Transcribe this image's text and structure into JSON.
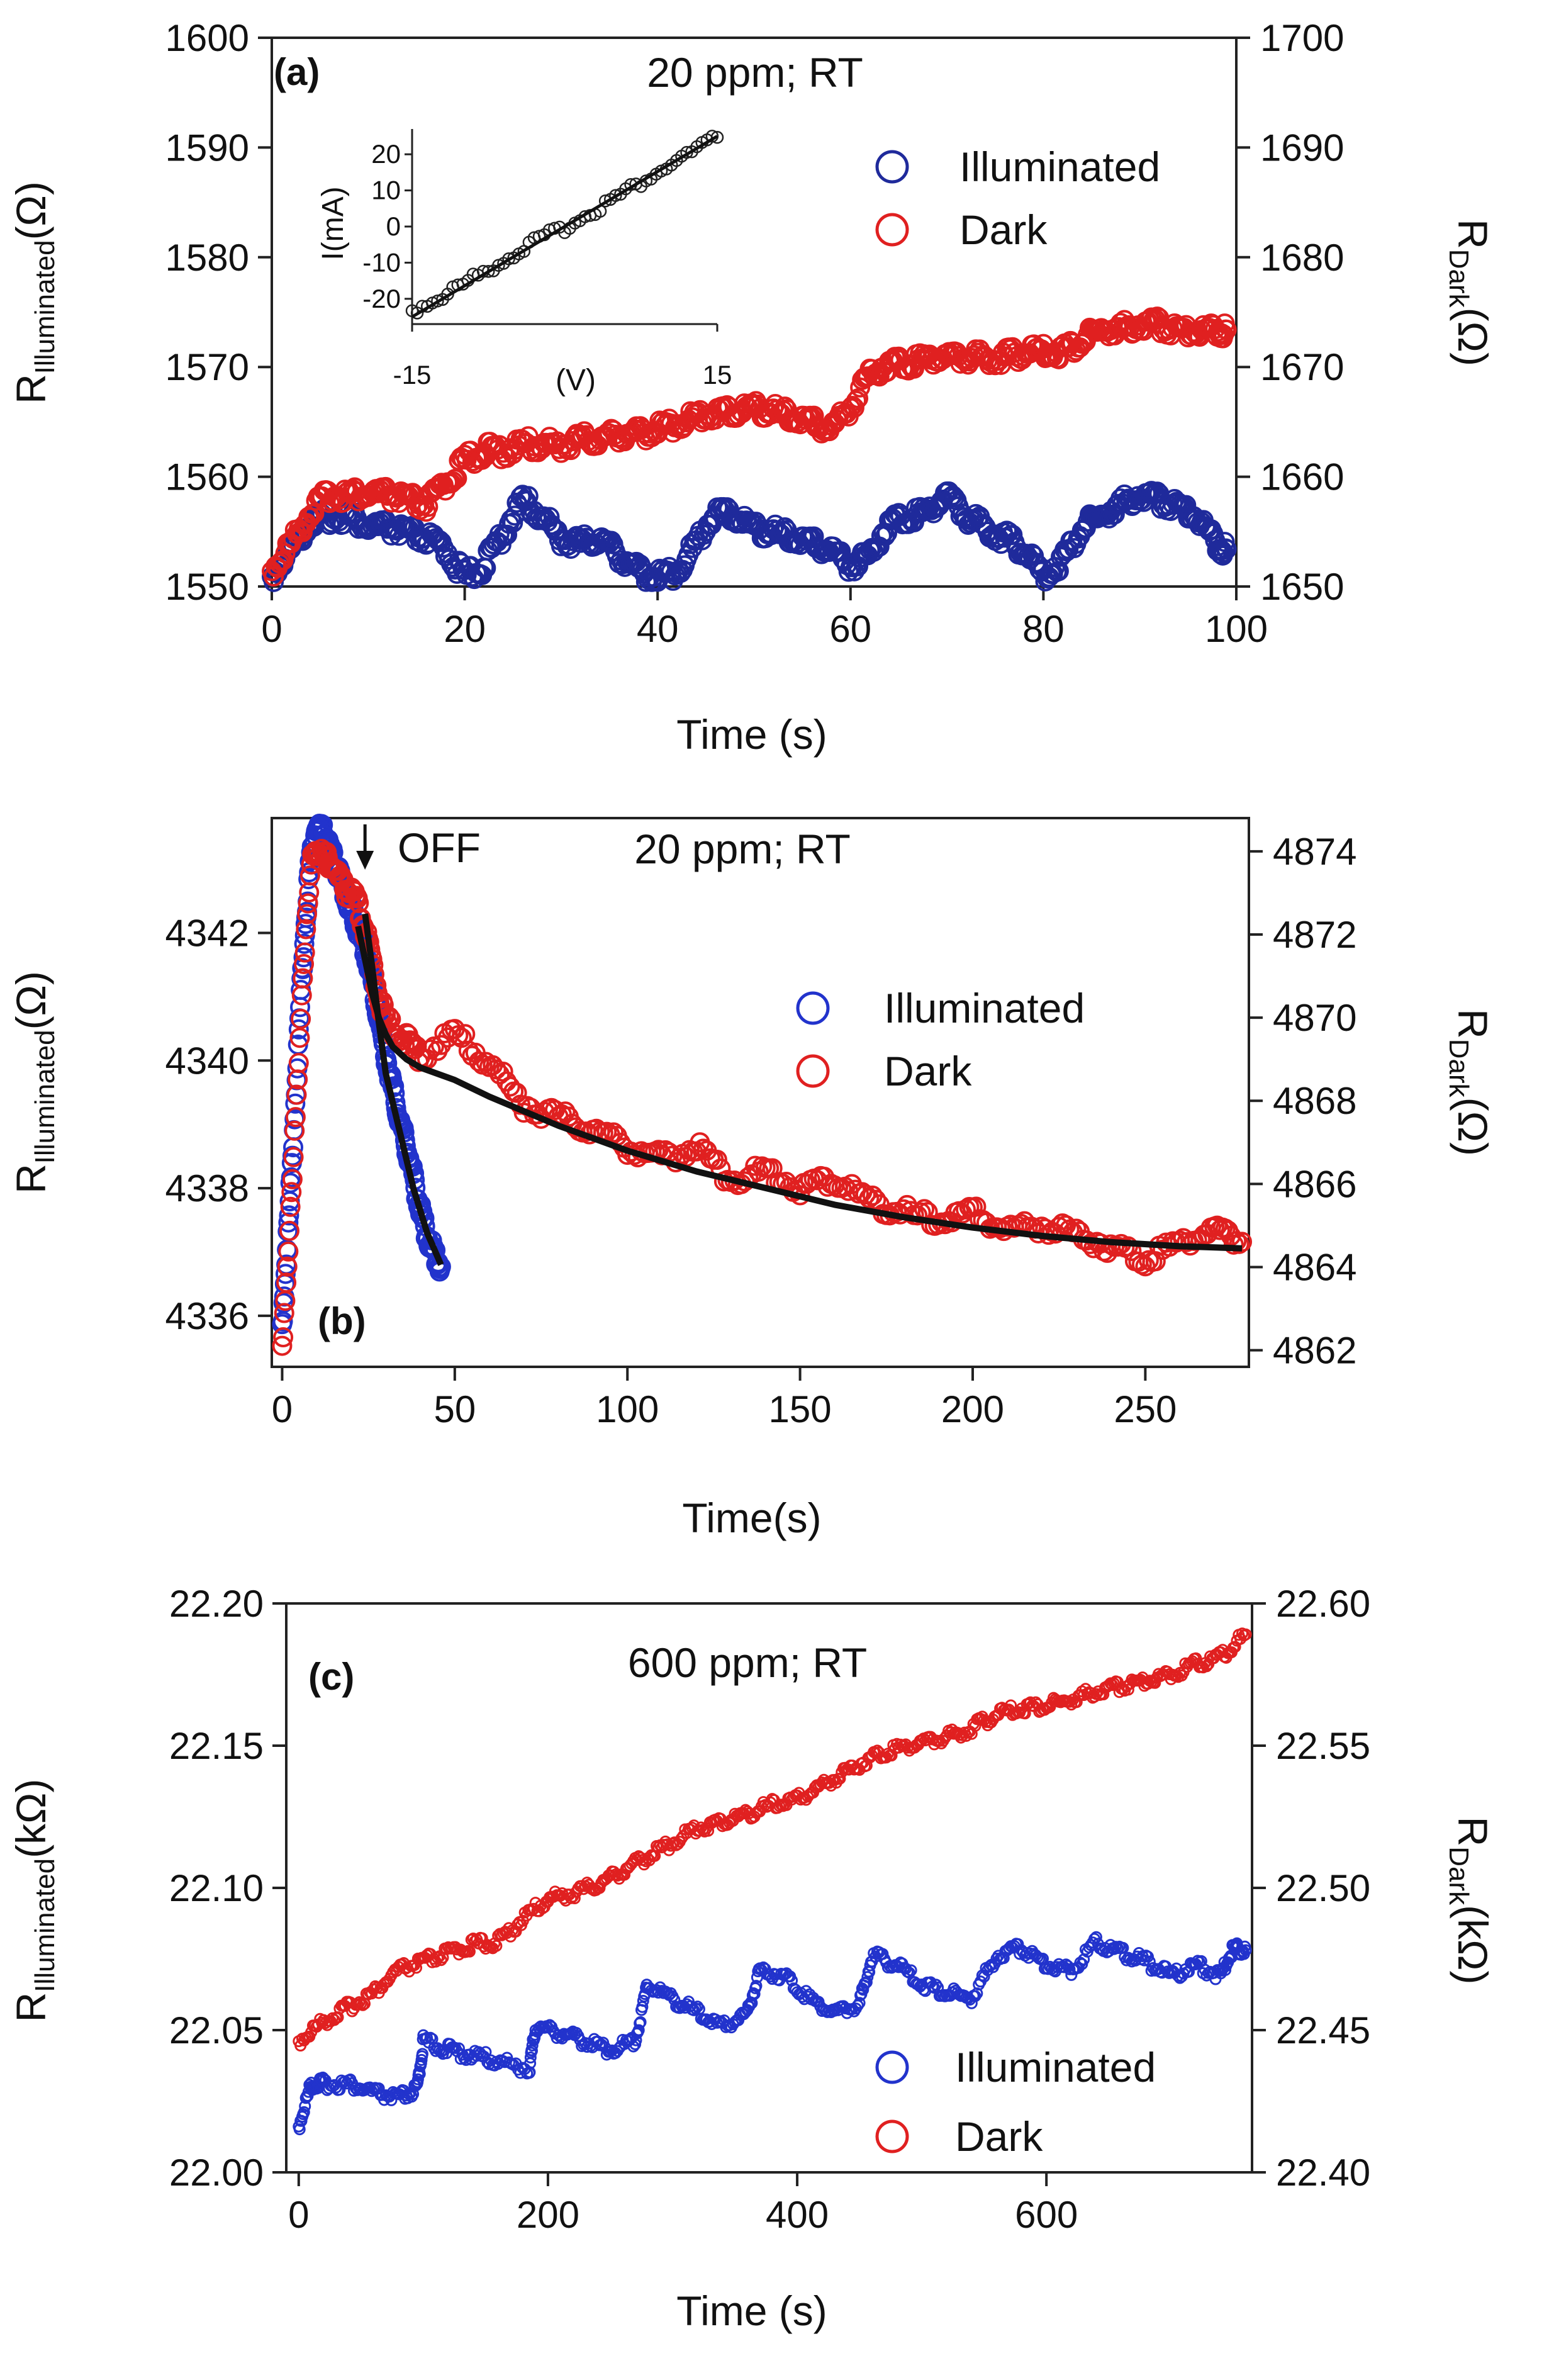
{
  "figure": {
    "description_panels": [
      "a",
      "b",
      "c"
    ]
  },
  "chart_data": [
    {
      "panel": "a",
      "type": "scatter",
      "tag": "(a)",
      "annotation": "20 ppm; RT",
      "xlabel": "Time (s)",
      "ylabel_left": {
        "base": "R",
        "sub": "Illuminated",
        "unit": "(Ω)"
      },
      "ylabel_right": {
        "base": "R",
        "sub": "Dark",
        "unit": "(Ω)"
      },
      "xlim": [
        0,
        100
      ],
      "ylim_left": [
        1550,
        1600
      ],
      "ylim_right": [
        1650,
        1700
      ],
      "xticks": [
        0,
        20,
        40,
        60,
        80,
        100
      ],
      "yticks_left": [
        1550,
        1560,
        1570,
        1580,
        1590,
        1600
      ],
      "yticks_right": [
        1650,
        1660,
        1670,
        1680,
        1690,
        1700
      ],
      "legend": [
        "Illuminated",
        "Dark"
      ],
      "series": [
        {
          "name": "Illuminated",
          "axis": "left",
          "color": "#1f2a9b",
          "x": [
            0,
            2,
            4,
            6,
            8,
            10,
            12,
            14,
            16,
            18,
            20,
            22,
            24,
            26,
            28,
            30,
            32,
            34,
            36,
            38,
            40,
            42,
            44,
            46,
            48,
            50,
            52,
            54,
            56,
            58,
            60,
            62,
            64,
            66,
            68,
            70,
            72,
            74,
            76,
            78,
            80,
            82,
            84,
            86,
            88,
            90,
            92,
            94,
            96,
            98,
            99
          ],
          "values": [
            1550.5,
            1553,
            1555.5,
            1556,
            1556,
            1555,
            1555,
            1554.5,
            1554,
            1553,
            1550.5,
            1551.5,
            1554.5,
            1557.5,
            1556,
            1554,
            1553.5,
            1554,
            1552.5,
            1551,
            1550.5,
            1551,
            1553.5,
            1556.5,
            1556,
            1555,
            1554.5,
            1554,
            1553.5,
            1553,
            1551.5,
            1552.5,
            1555.5,
            1556,
            1556.5,
            1558,
            1556,
            1555,
            1554,
            1553,
            1550.5,
            1552,
            1555,
            1556,
            1557,
            1558,
            1557.5,
            1557,
            1556,
            1553.5,
            1553
          ]
        },
        {
          "name": "Dark",
          "axis": "right",
          "color": "#e02020",
          "x": [
            0,
            2,
            4,
            6,
            8,
            10,
            12,
            14,
            16,
            18,
            20,
            22,
            24,
            26,
            28,
            30,
            32,
            34,
            36,
            38,
            40,
            42,
            44,
            46,
            48,
            50,
            52,
            54,
            56,
            58,
            60,
            62,
            64,
            66,
            68,
            70,
            72,
            74,
            76,
            78,
            80,
            82,
            84,
            86,
            88,
            90,
            92,
            94,
            96,
            98,
            99
          ],
          "values": [
            1651,
            1653.5,
            1656.5,
            1658,
            1658,
            1658,
            1658,
            1657.5,
            1657,
            1659,
            1661,
            1662,
            1662,
            1662.5,
            1662.5,
            1662.5,
            1663,
            1663,
            1663.5,
            1663.5,
            1664,
            1664.5,
            1665,
            1665.5,
            1665.5,
            1666,
            1665.5,
            1665,
            1664.5,
            1664,
            1666,
            1669,
            1670,
            1670,
            1670.5,
            1670.5,
            1670.5,
            1670.5,
            1670.5,
            1671,
            1671,
            1671,
            1672,
            1673,
            1673,
            1673.5,
            1673.5,
            1673,
            1673,
            1673,
            1673
          ]
        }
      ],
      "inset": {
        "type": "scatter",
        "xlabel": "(V)",
        "ylabel": "I(mA)",
        "xticks": [
          -15,
          15
        ],
        "yticks": [
          -20,
          -10,
          0,
          10,
          20
        ],
        "xlim": [
          -15,
          15
        ],
        "ylim": [
          -27,
          27
        ],
        "x": [
          -15,
          -12,
          -9,
          -6,
          -3,
          0,
          3,
          6,
          9,
          12,
          15
        ],
        "values": [
          -24,
          -20,
          -15,
          -10,
          -5,
          -1,
          4,
          9,
          14,
          19,
          24
        ],
        "color": "#222222"
      }
    },
    {
      "panel": "b",
      "type": "scatter",
      "tag": "(b)",
      "annotation": "20 ppm; RT",
      "arrow_label": "OFF",
      "xlabel": "Time(s)",
      "ylabel_left": {
        "base": "R",
        "sub": "Illuminated",
        "unit": "(Ω)"
      },
      "ylabel_right": {
        "base": "R",
        "sub": "Dark",
        "unit": "(Ω)"
      },
      "xlim": [
        -3,
        280
      ],
      "ylim_left": [
        4335.2,
        4343.8
      ],
      "ylim_right": [
        4861.6,
        4874.8
      ],
      "xticks": [
        0,
        50,
        100,
        150,
        200,
        250
      ],
      "yticks_left": [
        4336,
        4338,
        4340,
        4342
      ],
      "yticks_right": [
        4862,
        4864,
        4866,
        4868,
        4870,
        4872,
        4874
      ],
      "legend": [
        "Illuminated",
        "Dark"
      ],
      "arrow_x": 24,
      "series": [
        {
          "name": "Illuminated",
          "axis": "left",
          "color": "#2233cc",
          "x": [
            0,
            2,
            4,
            6,
            8,
            10,
            12,
            14,
            16,
            18,
            20,
            22,
            24,
            26,
            28,
            30,
            32,
            34,
            36,
            38,
            40,
            42,
            44,
            46
          ],
          "values": [
            4335.8,
            4337.5,
            4339.5,
            4341.5,
            4343,
            4343.6,
            4343.5,
            4343.2,
            4342.9,
            4342.6,
            4342.3,
            4342,
            4341.7,
            4341.2,
            4340.6,
            4340,
            4339.5,
            4339,
            4338.6,
            4338.1,
            4337.6,
            4337.2,
            4336.9,
            4336.7
          ]
        },
        {
          "name": "Dark",
          "axis": "right",
          "color": "#e02020",
          "x": [
            0,
            3,
            6,
            9,
            12,
            15,
            18,
            21,
            24,
            27,
            30,
            35,
            40,
            50,
            60,
            70,
            80,
            90,
            100,
            110,
            120,
            130,
            140,
            150,
            160,
            170,
            180,
            190,
            200,
            210,
            220,
            230,
            240,
            250,
            260,
            270,
            278
          ],
          "values": [
            4862,
            4866,
            4871,
            4874,
            4873.8,
            4873.5,
            4873,
            4872.8,
            4872,
            4870.8,
            4869.8,
            4869.4,
            4869,
            4869.5,
            4868.8,
            4867.8,
            4867.5,
            4867.2,
            4866.8,
            4866.5,
            4866.8,
            4866,
            4866.2,
            4865.8,
            4866,
            4865.5,
            4865.2,
            4865,
            4865.2,
            4864.8,
            4864.9,
            4864.7,
            4864.4,
            4864.1,
            4864.5,
            4864.8,
            4864.5
          ]
        }
      ],
      "fits": [
        {
          "name": "fit-illuminated",
          "axis": "left",
          "x": [
            24,
            26,
            28,
            30,
            34,
            38,
            42,
            46
          ],
          "values": [
            4342.3,
            4341.5,
            4340.6,
            4339.8,
            4338.9,
            4338,
            4337.3,
            4336.8
          ]
        },
        {
          "name": "fit-dark",
          "axis": "right",
          "x": [
            22,
            24,
            26,
            28,
            30,
            32,
            36,
            40,
            50,
            60,
            80,
            100,
            120,
            140,
            160,
            180,
            200,
            220,
            240,
            260,
            278
          ],
          "values": [
            4872.2,
            4871.4,
            4870.6,
            4870,
            4869.6,
            4869.3,
            4869,
            4868.8,
            4868.5,
            4868.1,
            4867.4,
            4866.8,
            4866.3,
            4865.9,
            4865.5,
            4865.2,
            4864.95,
            4864.75,
            4864.6,
            4864.5,
            4864.45
          ]
        }
      ]
    },
    {
      "panel": "c",
      "type": "scatter",
      "tag": "(c)",
      "annotation": "600 ppm; RT",
      "xlabel": "Time (s)",
      "ylabel_left": {
        "base": "R",
        "sub": "Illuminated",
        "unit": "(kΩ)"
      },
      "ylabel_right": {
        "base": "R",
        "sub": "Dark",
        "unit": "(kΩ)"
      },
      "xlim": [
        -10,
        765
      ],
      "ylim_left": [
        22.0,
        22.2
      ],
      "ylim_right": [
        22.4,
        22.6
      ],
      "xticks": [
        0,
        200,
        400,
        600
      ],
      "yticks_left": [
        "22.00",
        "22.05",
        "22.10",
        "22.15",
        "22.20"
      ],
      "yticks_right": [
        "22.40",
        "22.45",
        "22.50",
        "22.55",
        "22.60"
      ],
      "legend": [
        "Illuminated",
        "Dark"
      ],
      "series": [
        {
          "name": "Illuminated",
          "axis": "left",
          "color": "#2233cc",
          "x": [
            0,
            10,
            20,
            40,
            60,
            80,
            95,
            100,
            120,
            140,
            160,
            185,
            190,
            210,
            230,
            250,
            270,
            280,
            300,
            320,
            340,
            360,
            370,
            390,
            410,
            430,
            450,
            460,
            480,
            500,
            520,
            540,
            560,
            580,
            600,
            620,
            640,
            660,
            680,
            700,
            720,
            740,
            750,
            760
          ],
          "values": [
            22.015,
            22.03,
            22.03,
            22.03,
            22.027,
            22.025,
            22.028,
            22.045,
            22.042,
            22.04,
            22.038,
            22.035,
            22.05,
            22.048,
            22.045,
            22.042,
            22.045,
            22.065,
            22.06,
            22.055,
            22.05,
            22.055,
            22.07,
            22.068,
            22.06,
            22.055,
            22.058,
            22.075,
            22.072,
            22.065,
            22.062,
            22.06,
            22.075,
            22.078,
            22.072,
            22.07,
            22.08,
            22.076,
            22.073,
            22.068,
            22.072,
            22.068,
            22.078,
            22.077
          ]
        },
        {
          "name": "Dark",
          "axis": "right",
          "color": "#e02020",
          "x": [
            0,
            20,
            40,
            60,
            80,
            100,
            120,
            140,
            160,
            180,
            200,
            220,
            240,
            260,
            280,
            300,
            320,
            340,
            360,
            380,
            400,
            420,
            440,
            460,
            480,
            500,
            520,
            540,
            560,
            580,
            600,
            620,
            640,
            660,
            680,
            700,
            720,
            740,
            760
          ],
          "values": [
            22.445,
            22.452,
            22.457,
            22.462,
            22.47,
            22.473,
            22.476,
            22.479,
            22.48,
            22.488,
            22.495,
            22.497,
            22.5,
            22.505,
            22.51,
            22.515,
            22.52,
            22.522,
            22.525,
            22.528,
            22.53,
            22.535,
            22.54,
            22.545,
            22.548,
            22.55,
            22.552,
            22.555,
            22.56,
            22.562,
            22.563,
            22.565,
            22.568,
            22.57,
            22.572,
            22.574,
            22.578,
            22.58,
            22.588
          ]
        }
      ]
    }
  ]
}
